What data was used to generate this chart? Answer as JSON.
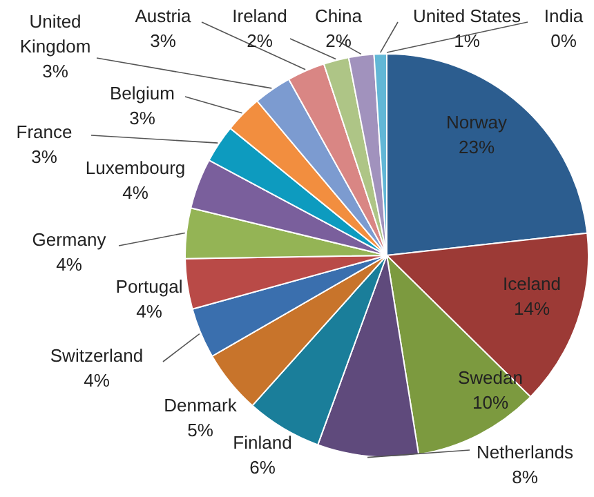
{
  "chart_data": {
    "type": "pie",
    "categories": [
      "Norway",
      "Iceland",
      "Swedan",
      "Netherlands",
      "Finland",
      "Denmark",
      "Switzerland",
      "Portugal",
      "Germany",
      "Luxembourg",
      "France",
      "Belgium",
      "United Kingdom",
      "Austria",
      "Ireland",
      "China",
      "United States",
      "India"
    ],
    "values": [
      23,
      14,
      10,
      8,
      6,
      5,
      4,
      4,
      4,
      4,
      3,
      3,
      3,
      3,
      2,
      2,
      1,
      0
    ],
    "value_labels": [
      "23%",
      "14%",
      "10%",
      "8%",
      "6%",
      "5%",
      "4%",
      "4%",
      "4%",
      "4%",
      "3%",
      "3%",
      "3%",
      "3%",
      "2%",
      "2%",
      "1%",
      "0%"
    ],
    "colors": [
      "#2c5d8f",
      "#9c3a36",
      "#7c9a3f",
      "#5f4a7c",
      "#1a7e9a",
      "#c8742b",
      "#3a6fae",
      "#b94a47",
      "#94b455",
      "#7a5f9c",
      "#0d9bbf",
      "#f28e3f",
      "#7c9bd0",
      "#d98684",
      "#aec586",
      "#a192bd",
      "#62b7d6",
      "#f7a76a"
    ]
  }
}
